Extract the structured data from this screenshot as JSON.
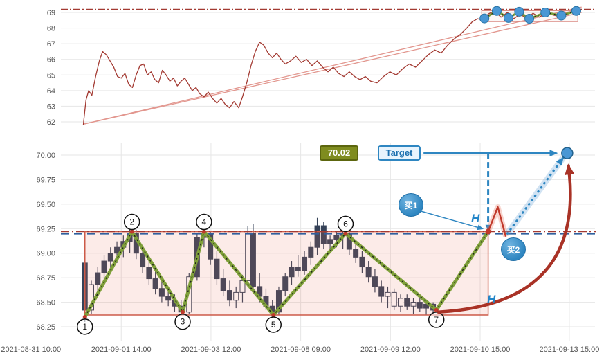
{
  "annotations": {
    "price_label": "70.02",
    "target_label": "Target",
    "buy1_label": "买1",
    "buy2_label": "买2",
    "h_upper": "H",
    "h_lower": "H",
    "pivot_labels": [
      "1",
      "2",
      "3",
      "4",
      "5",
      "6",
      "7"
    ]
  },
  "colors": {
    "line": "#a33a32",
    "candle": "#354258",
    "zigzag": "#7fa03a",
    "zigzag_dots": "#1f1f1f",
    "pivot_dot": "#c0392b",
    "box_stroke": "#cc5a48",
    "box_fill": "rgba(231,112,91,0.14)",
    "top_box_stroke": "#d98880",
    "hline_red": "#a33a32",
    "hline_blue": "#2f5f9e",
    "blue": "#2e86c1",
    "blue_dot": "#4a97d4",
    "blue_dot_edge": "#2874a6",
    "arrow_red": "#a93226",
    "channel": "#e2968e",
    "grid": "#e6e6e6",
    "axis_text": "#555555",
    "w_halo": "rgba(231,112,91,0.30)",
    "proj_halo": "rgba(91,155,213,0.28)"
  },
  "chart_data": [
    {
      "id": "overview",
      "type": "line",
      "y_tick_labels": [
        "69",
        "68",
        "67",
        "66",
        "65",
        "64",
        "63",
        "62"
      ],
      "y_tick_values": [
        69,
        68,
        67,
        66,
        65,
        64,
        63,
        62
      ],
      "ylim": [
        61.45,
        69.45
      ],
      "hline_dashdot": 69.2,
      "channel_lines": [
        {
          "x1": 0.042,
          "p1": 61.85,
          "x2": 0.975,
          "p2": 69.35
        },
        {
          "x1": 0.042,
          "p1": 61.85,
          "x2": 0.975,
          "p2": 69.0
        }
      ],
      "box": {
        "x0": 0.788,
        "x1": 0.968,
        "p0": 68.42,
        "p1": 69.12
      },
      "line": [
        [
          0.042,
          61.8
        ],
        [
          0.047,
          63.4
        ],
        [
          0.052,
          64.0
        ],
        [
          0.058,
          63.7
        ],
        [
          0.065,
          64.9
        ],
        [
          0.072,
          65.9
        ],
        [
          0.078,
          66.5
        ],
        [
          0.085,
          66.3
        ],
        [
          0.092,
          65.9
        ],
        [
          0.099,
          65.5
        ],
        [
          0.106,
          64.9
        ],
        [
          0.113,
          64.8
        ],
        [
          0.12,
          65.1
        ],
        [
          0.127,
          64.4
        ],
        [
          0.134,
          64.2
        ],
        [
          0.141,
          65.0
        ],
        [
          0.148,
          65.6
        ],
        [
          0.155,
          65.7
        ],
        [
          0.162,
          65.0
        ],
        [
          0.169,
          65.2
        ],
        [
          0.176,
          64.7
        ],
        [
          0.183,
          64.5
        ],
        [
          0.19,
          65.3
        ],
        [
          0.197,
          65.0
        ],
        [
          0.204,
          64.6
        ],
        [
          0.211,
          64.8
        ],
        [
          0.218,
          64.3
        ],
        [
          0.225,
          64.6
        ],
        [
          0.232,
          64.8
        ],
        [
          0.239,
          64.4
        ],
        [
          0.246,
          64.0
        ],
        [
          0.253,
          64.2
        ],
        [
          0.26,
          63.8
        ],
        [
          0.268,
          63.6
        ],
        [
          0.276,
          63.9
        ],
        [
          0.284,
          63.5
        ],
        [
          0.292,
          63.2
        ],
        [
          0.3,
          63.5
        ],
        [
          0.308,
          63.1
        ],
        [
          0.316,
          62.9
        ],
        [
          0.324,
          63.3
        ],
        [
          0.333,
          62.9
        ],
        [
          0.34,
          63.6
        ],
        [
          0.348,
          64.5
        ],
        [
          0.356,
          65.6
        ],
        [
          0.364,
          66.5
        ],
        [
          0.372,
          67.1
        ],
        [
          0.38,
          66.9
        ],
        [
          0.388,
          66.4
        ],
        [
          0.396,
          66.1
        ],
        [
          0.404,
          66.4
        ],
        [
          0.412,
          66.0
        ],
        [
          0.42,
          65.7
        ],
        [
          0.43,
          65.9
        ],
        [
          0.44,
          66.2
        ],
        [
          0.45,
          65.8
        ],
        [
          0.46,
          66.0
        ],
        [
          0.47,
          65.6
        ],
        [
          0.48,
          65.9
        ],
        [
          0.49,
          65.5
        ],
        [
          0.5,
          65.2
        ],
        [
          0.51,
          65.5
        ],
        [
          0.52,
          65.1
        ],
        [
          0.53,
          64.9
        ],
        [
          0.54,
          65.2
        ],
        [
          0.55,
          64.9
        ],
        [
          0.56,
          64.7
        ],
        [
          0.57,
          64.9
        ],
        [
          0.58,
          64.6
        ],
        [
          0.592,
          64.5
        ],
        [
          0.604,
          64.9
        ],
        [
          0.616,
          65.2
        ],
        [
          0.628,
          65.0
        ],
        [
          0.64,
          65.4
        ],
        [
          0.652,
          65.7
        ],
        [
          0.664,
          65.5
        ],
        [
          0.676,
          65.9
        ],
        [
          0.688,
          66.3
        ],
        [
          0.7,
          66.6
        ],
        [
          0.712,
          66.4
        ],
        [
          0.724,
          66.9
        ],
        [
          0.736,
          67.3
        ],
        [
          0.748,
          67.6
        ],
        [
          0.76,
          68.0
        ],
        [
          0.77,
          68.4
        ],
        [
          0.78,
          68.6
        ],
        [
          0.79,
          68.5
        ],
        [
          0.8,
          68.9
        ],
        [
          0.812,
          69.1
        ],
        [
          0.824,
          68.7
        ],
        [
          0.836,
          69.0
        ],
        [
          0.848,
          68.6
        ],
        [
          0.86,
          68.9
        ],
        [
          0.872,
          68.6
        ],
        [
          0.884,
          68.95
        ],
        [
          0.896,
          68.7
        ],
        [
          0.908,
          69.0
        ],
        [
          0.92,
          68.85
        ],
        [
          0.932,
          68.75
        ],
        [
          0.944,
          69.0
        ],
        [
          0.956,
          69.05
        ],
        [
          0.968,
          69.1
        ]
      ],
      "mini_zigzag": [
        [
          0.793,
          68.62
        ],
        [
          0.816,
          69.1
        ],
        [
          0.838,
          68.65
        ],
        [
          0.858,
          69.05
        ],
        [
          0.877,
          68.6
        ],
        [
          0.907,
          69.0
        ],
        [
          0.937,
          68.8
        ],
        [
          0.965,
          69.1
        ]
      ]
    },
    {
      "id": "detail",
      "type": "candlestick",
      "x_tick_labels": [
        "2021-08-31 10:00",
        "2021-09-01 14:00",
        "2021-09-03 12:00",
        "2021-09-08 09:00",
        "2021-09-09 12:00",
        "2021-09-10 15:00",
        "2021-09-13 15:00"
      ],
      "x_tick_frac": [
        -0.056,
        0.113,
        0.281,
        0.449,
        0.617,
        0.785,
        0.952
      ],
      "y_tick_labels": [
        "70.00",
        "69.75",
        "69.50",
        "69.25",
        "69.00",
        "68.75",
        "68.50",
        "68.25"
      ],
      "y_tick_values": [
        70.0,
        69.75,
        69.5,
        69.25,
        69.0,
        68.75,
        68.5,
        68.25
      ],
      "ylim": [
        68.11,
        70.17
      ],
      "resistance_level": 69.22,
      "target_level": 70.02,
      "box": {
        "x0": 0.045,
        "x1": 0.8,
        "p0": 68.37,
        "p1": 69.22
      },
      "candles": [
        [
          0.045,
          68.9,
          69.0,
          68.3,
          68.42,
          0
        ],
        [
          0.057,
          68.42,
          68.72,
          68.38,
          68.68,
          1
        ],
        [
          0.069,
          68.68,
          68.86,
          68.6,
          68.8,
          0
        ],
        [
          0.081,
          68.8,
          68.98,
          68.72,
          68.92,
          0
        ],
        [
          0.093,
          68.92,
          69.06,
          68.84,
          69.0,
          0
        ],
        [
          0.105,
          69.0,
          69.12,
          68.9,
          69.06,
          0
        ],
        [
          0.117,
          69.06,
          69.18,
          68.96,
          69.12,
          0
        ],
        [
          0.129,
          69.12,
          69.24,
          69.0,
          69.2,
          0
        ],
        [
          0.141,
          69.2,
          69.24,
          68.94,
          69.0,
          0
        ],
        [
          0.153,
          69.0,
          69.08,
          68.8,
          68.86,
          0
        ],
        [
          0.165,
          68.86,
          68.94,
          68.68,
          68.74,
          0
        ],
        [
          0.177,
          68.74,
          68.84,
          68.58,
          68.64,
          0
        ],
        [
          0.189,
          68.64,
          68.72,
          68.5,
          68.56,
          0
        ],
        [
          0.201,
          68.56,
          68.64,
          68.46,
          68.52,
          0
        ],
        [
          0.213,
          68.52,
          68.58,
          68.4,
          68.46,
          0
        ],
        [
          0.225,
          68.46,
          68.52,
          68.36,
          68.4,
          0
        ],
        [
          0.24,
          68.4,
          68.8,
          68.38,
          68.76,
          1
        ],
        [
          0.255,
          68.76,
          69.2,
          68.72,
          69.16,
          0
        ],
        [
          0.268,
          69.16,
          69.24,
          69.06,
          69.2,
          0
        ],
        [
          0.28,
          69.2,
          69.22,
          68.88,
          68.94,
          0
        ],
        [
          0.292,
          68.94,
          69.02,
          68.68,
          68.74,
          0
        ],
        [
          0.304,
          68.74,
          68.84,
          68.56,
          68.62,
          0
        ],
        [
          0.316,
          68.62,
          68.72,
          68.46,
          68.52,
          0
        ],
        [
          0.328,
          68.52,
          68.66,
          68.44,
          68.6,
          1
        ],
        [
          0.34,
          68.6,
          68.78,
          68.5,
          68.72,
          1
        ],
        [
          0.35,
          68.72,
          69.28,
          68.66,
          69.2,
          1
        ],
        [
          0.36,
          69.2,
          69.3,
          68.6,
          68.66,
          0
        ],
        [
          0.372,
          68.66,
          68.8,
          68.5,
          68.56,
          0
        ],
        [
          0.384,
          68.56,
          68.64,
          68.42,
          68.46,
          0
        ],
        [
          0.396,
          68.46,
          68.52,
          68.35,
          68.4,
          0
        ],
        [
          0.408,
          68.4,
          68.66,
          68.37,
          68.62,
          0
        ],
        [
          0.42,
          68.62,
          68.8,
          68.56,
          68.76,
          0
        ],
        [
          0.432,
          68.76,
          68.92,
          68.68,
          68.86,
          0
        ],
        [
          0.444,
          68.86,
          68.98,
          68.76,
          68.82,
          0
        ],
        [
          0.456,
          68.82,
          69.02,
          68.78,
          68.96,
          0
        ],
        [
          0.468,
          68.96,
          69.12,
          68.88,
          69.06,
          0
        ],
        [
          0.48,
          69.06,
          69.36,
          68.98,
          69.28,
          0
        ],
        [
          0.492,
          69.28,
          69.32,
          69.04,
          69.1,
          0
        ],
        [
          0.504,
          69.1,
          69.18,
          69.0,
          69.14,
          0
        ],
        [
          0.516,
          69.14,
          69.22,
          69.06,
          69.18,
          0
        ],
        [
          0.528,
          69.18,
          69.22,
          69.04,
          69.2,
          0
        ],
        [
          0.54,
          69.2,
          69.22,
          68.98,
          69.04,
          0
        ],
        [
          0.552,
          69.04,
          69.12,
          68.9,
          68.96,
          0
        ],
        [
          0.564,
          68.96,
          69.02,
          68.8,
          68.86,
          0
        ],
        [
          0.576,
          68.86,
          68.92,
          68.7,
          68.76,
          0
        ],
        [
          0.588,
          68.76,
          68.84,
          68.6,
          68.66,
          0
        ],
        [
          0.6,
          68.66,
          68.72,
          68.5,
          68.56,
          0
        ],
        [
          0.612,
          68.56,
          68.66,
          68.44,
          68.6,
          1
        ],
        [
          0.624,
          68.6,
          68.64,
          68.42,
          68.46,
          1
        ],
        [
          0.636,
          68.46,
          68.58,
          68.4,
          68.54,
          1
        ],
        [
          0.648,
          68.54,
          68.58,
          68.42,
          68.46,
          0
        ],
        [
          0.66,
          68.46,
          68.54,
          68.38,
          68.5,
          1
        ],
        [
          0.672,
          68.5,
          68.54,
          68.4,
          68.44,
          0
        ],
        [
          0.684,
          68.44,
          68.5,
          68.37,
          68.48,
          0
        ],
        [
          0.697,
          68.48,
          68.5,
          68.38,
          68.42,
          0
        ]
      ],
      "zigzag": [
        [
          0.045,
          68.35
        ],
        [
          0.133,
          69.22
        ],
        [
          0.228,
          68.4
        ],
        [
          0.268,
          69.22
        ],
        [
          0.398,
          68.37
        ],
        [
          0.533,
          69.2
        ],
        [
          0.703,
          68.42
        ],
        [
          0.8,
          69.22
        ]
      ],
      "breakout_w": [
        [
          0.8,
          69.22
        ],
        [
          0.818,
          69.47
        ],
        [
          0.833,
          69.17
        ]
      ],
      "projection_arrow": {
        "from": [
          0.836,
          69.2
        ],
        "to": [
          0.94,
          69.97
        ]
      },
      "target_point": [
        0.948,
        70.02
      ],
      "measure_vline": {
        "x": 0.8,
        "p0": 70.02,
        "p1": 69.24
      },
      "target_arrow": {
        "x0": 0.679,
        "x1": 0.928,
        "p": 70.02
      },
      "curve_arrow": {
        "from": [
          0.705,
          68.4
        ],
        "ctrl": [
          0.985,
          68.48
        ],
        "to": [
          0.95,
          69.9
        ]
      },
      "buy1_arrow": {
        "from": [
          0.673,
          69.43
        ],
        "to": [
          0.789,
          69.25
        ]
      }
    }
  ]
}
